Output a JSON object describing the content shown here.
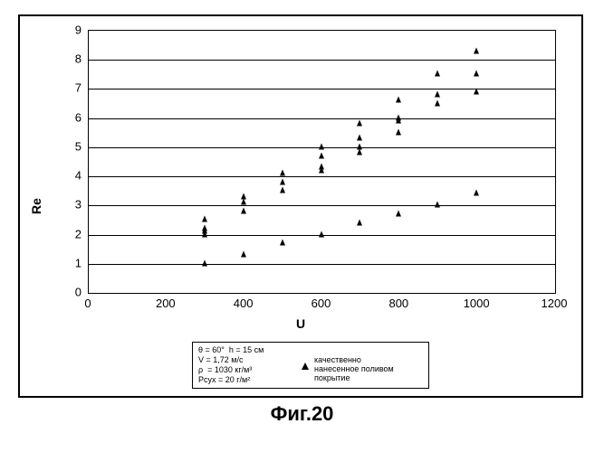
{
  "caption": "Фиг.20",
  "chart": {
    "type": "scatter",
    "xlabel": "U",
    "ylabel": "Re",
    "label_fontsize": 14,
    "tick_fontsize": 13,
    "background_color": "#ffffff",
    "grid_color": "#000000",
    "marker_color": "#000000",
    "marker_style": "triangle",
    "marker_size": 7,
    "xlim": [
      0,
      1200
    ],
    "ylim": [
      0,
      9
    ],
    "xticks": [
      0,
      200,
      400,
      600,
      800,
      1000,
      1200
    ],
    "yticks": [
      0,
      1,
      2,
      3,
      4,
      5,
      6,
      7,
      8,
      9
    ],
    "legend": {
      "params": [
        "θ = 60°  h = 15 см",
        "V = 1,72 м/c",
        "ρ  = 1030 кг/м³",
        "Pсух = 20 г/м²"
      ],
      "series_label": "качественно\nнанесенное поливом\nпокрытие"
    },
    "points": [
      [
        300,
        1.0
      ],
      [
        300,
        2.0
      ],
      [
        300,
        2.1
      ],
      [
        300,
        2.2
      ],
      [
        300,
        2.5
      ],
      [
        400,
        1.3
      ],
      [
        400,
        2.8
      ],
      [
        400,
        3.1
      ],
      [
        400,
        3.3
      ],
      [
        500,
        1.7
      ],
      [
        500,
        3.5
      ],
      [
        500,
        3.8
      ],
      [
        500,
        4.1
      ],
      [
        600,
        2.0
      ],
      [
        600,
        4.2
      ],
      [
        600,
        4.3
      ],
      [
        600,
        4.7
      ],
      [
        600,
        5.0
      ],
      [
        700,
        2.4
      ],
      [
        700,
        4.8
      ],
      [
        700,
        5.0
      ],
      [
        700,
        5.3
      ],
      [
        700,
        5.8
      ],
      [
        800,
        2.7
      ],
      [
        800,
        5.5
      ],
      [
        800,
        5.9
      ],
      [
        800,
        6.0
      ],
      [
        800,
        6.6
      ],
      [
        900,
        3.0
      ],
      [
        900,
        6.5
      ],
      [
        900,
        6.8
      ],
      [
        900,
        7.5
      ],
      [
        1000,
        3.4
      ],
      [
        1000,
        6.9
      ],
      [
        1000,
        7.5
      ],
      [
        1000,
        8.3
      ]
    ]
  }
}
